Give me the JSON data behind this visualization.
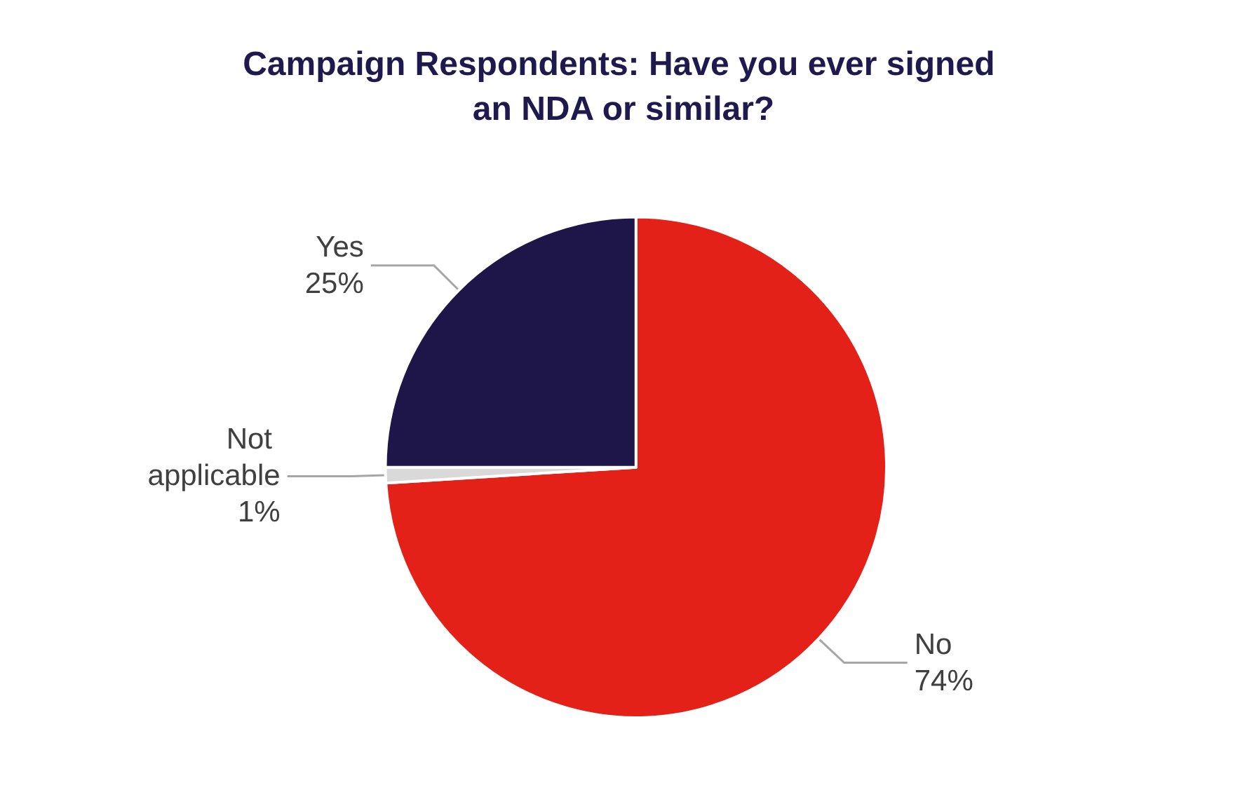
{
  "chart_data": {
    "type": "pie",
    "title": "Campaign Respondents: Have you ever signed an NDA or similar?",
    "categories": [
      "No",
      "Not applicable",
      "Yes"
    ],
    "values": [
      74,
      1,
      25
    ],
    "colors": [
      "#e32119",
      "#d9d9d9",
      "#1e1548"
    ],
    "value_labels": [
      "74%",
      "1%",
      "25%"
    ],
    "legend": false
  }
}
